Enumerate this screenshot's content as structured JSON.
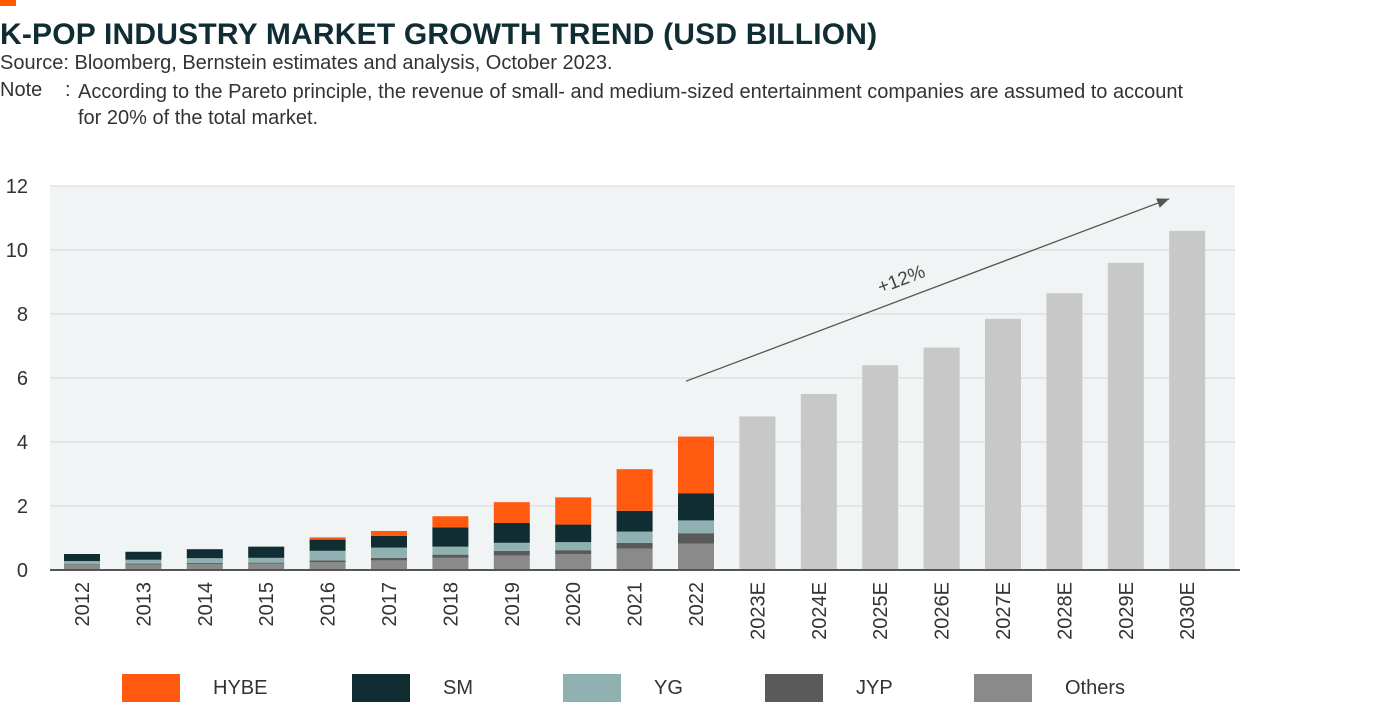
{
  "header": {
    "title": "K-POP INDUSTRY MARKET GROWTH TREND (USD BILLION)",
    "source": "Source: Bloomberg, Bernstein estimates and analysis, October 2023.",
    "note_label": "Note",
    "note_colon": ":",
    "note_text": "According to the Pareto principle, the revenue of small- and medium-sized entertainment companies are assumed to account for 20% of the total market."
  },
  "colors": {
    "accent": "#ff5a00",
    "HYBE": "#ff5a0f",
    "SM": "#0f2d33",
    "YG": "#8fb1b1",
    "JYP": "#5a5a5a",
    "Others": "#8a8a8a",
    "estimate": "#c8c8c8",
    "plot_bg": "#f1f4f4",
    "grid": "#d5d9d9"
  },
  "chart_data": {
    "type": "bar",
    "stacked": true,
    "categories": [
      "2012",
      "2013",
      "2014",
      "2015",
      "2016",
      "2017",
      "2018",
      "2019",
      "2020",
      "2021",
      "2022",
      "2023E",
      "2024E",
      "2025E",
      "2026E",
      "2027E",
      "2028E",
      "2029E",
      "2030E"
    ],
    "series": [
      {
        "name": "Others",
        "values": [
          0.15,
          0.17,
          0.19,
          0.2,
          0.25,
          0.3,
          0.38,
          0.45,
          0.5,
          0.67,
          0.82,
          null,
          null,
          null,
          null,
          null,
          null,
          null,
          null
        ]
      },
      {
        "name": "JYP",
        "values": [
          0.03,
          0.03,
          0.03,
          0.03,
          0.05,
          0.08,
          0.1,
          0.15,
          0.12,
          0.18,
          0.33,
          null,
          null,
          null,
          null,
          null,
          null,
          null,
          null
        ]
      },
      {
        "name": "YG",
        "values": [
          0.1,
          0.12,
          0.15,
          0.15,
          0.3,
          0.32,
          0.25,
          0.25,
          0.25,
          0.35,
          0.4,
          null,
          null,
          null,
          null,
          null,
          null,
          null,
          null
        ]
      },
      {
        "name": "SM",
        "values": [
          0.22,
          0.25,
          0.28,
          0.35,
          0.35,
          0.37,
          0.6,
          0.62,
          0.55,
          0.65,
          0.85,
          null,
          null,
          null,
          null,
          null,
          null,
          null,
          null
        ]
      },
      {
        "name": "HYBE",
        "values": [
          0,
          0,
          0,
          0,
          0.07,
          0.15,
          0.35,
          0.65,
          0.85,
          1.3,
          1.77,
          null,
          null,
          null,
          null,
          null,
          null,
          null,
          null
        ]
      }
    ],
    "estimate_totals": [
      null,
      null,
      null,
      null,
      null,
      null,
      null,
      null,
      null,
      null,
      null,
      4.8,
      5.5,
      6.4,
      6.95,
      7.85,
      8.65,
      9.6,
      10.6
    ],
    "ylim": [
      0,
      12
    ],
    "yticks": [
      "0",
      "2",
      "4",
      "6",
      "8",
      "10",
      "12"
    ],
    "annotation": {
      "label": "+12%",
      "from": {
        "category": "2022",
        "value": 5.9
      },
      "to": {
        "category": "2030E",
        "value": 11.6
      }
    },
    "legend": [
      "HYBE",
      "SM",
      "YG",
      "JYP",
      "Others"
    ],
    "legend_position": "bottom",
    "grid": true
  }
}
